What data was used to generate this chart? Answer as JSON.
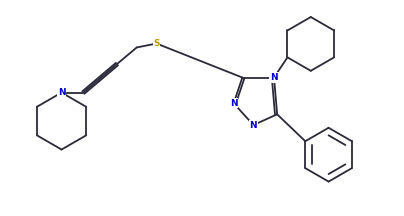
{
  "bg_color": "#ffffff",
  "line_color": "#2a2a3a",
  "atom_colors": {
    "N": "#0000cc",
    "S": "#bb9900",
    "C": "#2a2a3a"
  },
  "figsize": [
    4.04,
    2.16
  ],
  "dpi": 100
}
